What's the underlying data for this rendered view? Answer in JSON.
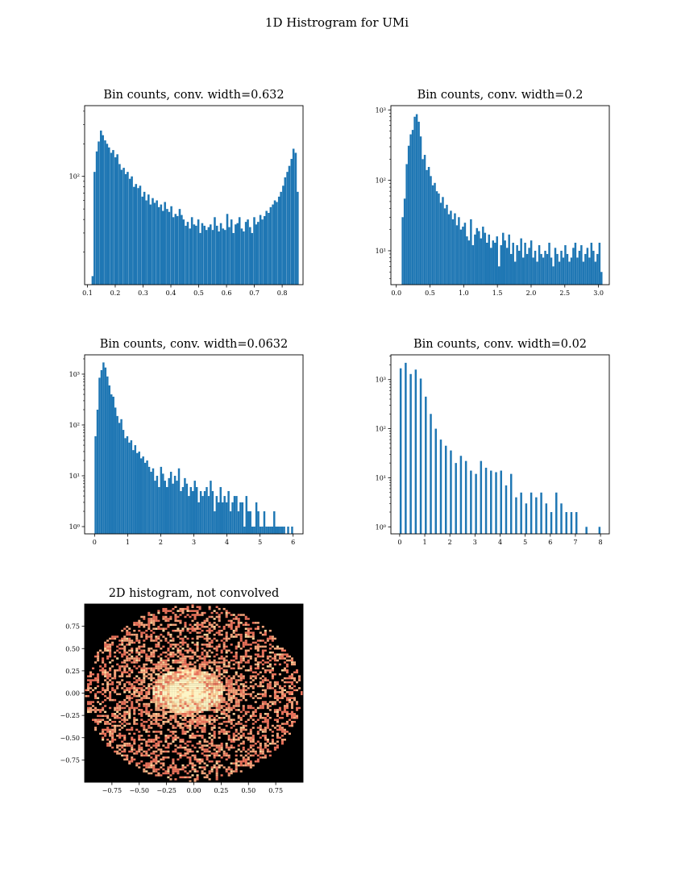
{
  "figure": {
    "suptitle": "1D Histrogram for UMi"
  },
  "colors": {
    "bar": "#1f77b4",
    "axis": "#000000"
  },
  "chart_data": [
    {
      "id": "h632",
      "type": "bar",
      "title": "Bin counts, conv. width=0.632",
      "yscale": "log",
      "xlim": [
        0.09,
        0.875
      ],
      "ylim": [
        10,
        450
      ],
      "x_ticks": [
        "0.1",
        "0.2",
        "0.3",
        "0.4",
        "0.5",
        "0.6",
        "0.7",
        "0.8"
      ],
      "x_tick_values": [
        0.1,
        0.2,
        0.3,
        0.4,
        0.5,
        0.6,
        0.7,
        0.8
      ],
      "y_ticks": [
        "10²"
      ],
      "y_tick_values": [
        100
      ],
      "y_minor_tick_values": [
        20,
        30,
        40,
        50,
        60,
        70,
        80,
        90,
        200,
        300,
        400
      ],
      "bin_width": 0.00745,
      "bin_left": [
        0.115,
        0.122,
        0.13,
        0.137,
        0.145,
        0.152,
        0.16,
        0.167,
        0.174,
        0.182,
        0.189,
        0.197,
        0.204,
        0.212,
        0.219,
        0.227,
        0.234,
        0.241,
        0.249,
        0.256,
        0.264,
        0.271,
        0.279,
        0.286,
        0.294,
        0.301,
        0.308,
        0.316,
        0.323,
        0.331,
        0.338,
        0.346,
        0.353,
        0.361,
        0.368,
        0.375,
        0.383,
        0.39,
        0.398,
        0.405,
        0.413,
        0.42,
        0.428,
        0.435,
        0.442,
        0.45,
        0.457,
        0.465,
        0.472,
        0.48,
        0.487,
        0.495,
        0.502,
        0.509,
        0.517,
        0.524,
        0.532,
        0.539,
        0.547,
        0.554,
        0.562,
        0.569,
        0.576,
        0.584,
        0.591,
        0.599,
        0.606,
        0.614,
        0.621,
        0.629,
        0.636,
        0.643,
        0.651,
        0.658,
        0.666,
        0.673,
        0.681,
        0.688,
        0.696,
        0.703,
        0.71,
        0.718,
        0.725,
        0.733,
        0.74,
        0.748,
        0.755,
        0.763,
        0.77,
        0.777,
        0.785,
        0.792,
        0.8,
        0.807,
        0.815,
        0.822,
        0.83,
        0.837,
        0.845,
        0.852
      ],
      "values": [
        12,
        110,
        170,
        210,
        265,
        240,
        215,
        200,
        185,
        165,
        175,
        150,
        160,
        130,
        115,
        120,
        105,
        110,
        95,
        100,
        80,
        85,
        78,
        82,
        65,
        72,
        60,
        68,
        55,
        63,
        57,
        60,
        52,
        55,
        48,
        58,
        50,
        47,
        53,
        42,
        45,
        43,
        50,
        44,
        40,
        35,
        38,
        33,
        42,
        36,
        35,
        40,
        30,
        37,
        35,
        32,
        34,
        36,
        32,
        42,
        35,
        31,
        37,
        33,
        32,
        45,
        34,
        40,
        30,
        36,
        37,
        42,
        33,
        31,
        38,
        40,
        34,
        30,
        42,
        36,
        38,
        44,
        40,
        43,
        48,
        46,
        52,
        55,
        60,
        58,
        65,
        72,
        82,
        98,
        110,
        125,
        145,
        180,
        165,
        72
      ]
    },
    {
      "id": "h2",
      "type": "bar",
      "title": "Bin counts, conv. width=0.2",
      "yscale": "log",
      "xlim": [
        -0.08,
        3.16
      ],
      "ylim": [
        3.3,
        1150
      ],
      "x_ticks": [
        "0.0",
        "0.5",
        "1.0",
        "1.5",
        "2.0",
        "2.5",
        "3.0"
      ],
      "x_tick_values": [
        0.0,
        0.5,
        1.0,
        1.5,
        2.0,
        2.5,
        3.0
      ],
      "y_ticks": [
        "10¹",
        "10²",
        "10³"
      ],
      "y_tick_values": [
        10,
        100,
        1000
      ],
      "y_minor_tick_values": [
        4,
        5,
        6,
        7,
        8,
        9,
        20,
        30,
        40,
        50,
        60,
        70,
        80,
        90,
        200,
        300,
        400,
        500,
        600,
        700,
        800,
        900
      ],
      "bin_width": 0.0298,
      "bin_left": [
        0.08,
        0.11,
        0.14,
        0.17,
        0.199,
        0.229,
        0.259,
        0.289,
        0.319,
        0.348,
        0.378,
        0.408,
        0.438,
        0.468,
        0.497,
        0.527,
        0.557,
        0.587,
        0.616,
        0.646,
        0.676,
        0.706,
        0.736,
        0.765,
        0.795,
        0.825,
        0.855,
        0.885,
        0.914,
        0.944,
        0.974,
        1.004,
        1.034,
        1.063,
        1.093,
        1.123,
        1.153,
        1.182,
        1.212,
        1.242,
        1.272,
        1.302,
        1.331,
        1.361,
        1.391,
        1.421,
        1.451,
        1.48,
        1.51,
        1.54,
        1.57,
        1.599,
        1.629,
        1.659,
        1.689,
        1.719,
        1.748,
        1.778,
        1.808,
        1.838,
        1.868,
        1.897,
        1.927,
        1.957,
        1.987,
        2.017,
        2.046,
        2.076,
        2.106,
        2.136,
        2.165,
        2.195,
        2.225,
        2.255,
        2.285,
        2.314,
        2.344,
        2.374,
        2.404,
        2.434,
        2.463,
        2.493,
        2.523,
        2.553,
        2.583,
        2.612,
        2.642,
        2.672,
        2.702,
        2.731,
        2.761,
        2.791,
        2.821,
        2.851,
        2.88,
        2.91,
        2.94,
        2.97,
        3.0,
        3.029
      ],
      "values": [
        30,
        55,
        170,
        310,
        450,
        520,
        800,
        870,
        680,
        420,
        200,
        230,
        140,
        155,
        115,
        85,
        92,
        70,
        65,
        48,
        58,
        40,
        45,
        33,
        37,
        28,
        34,
        23,
        30,
        20,
        22,
        25,
        16,
        14,
        28,
        12,
        17,
        21,
        19,
        15,
        22,
        18,
        13,
        17,
        11,
        14,
        13,
        16,
        6,
        12,
        18,
        14,
        11,
        17,
        9,
        13,
        7,
        12,
        10,
        15,
        8,
        13,
        9,
        11,
        14,
        8,
        10,
        7,
        12,
        9,
        8,
        10,
        9,
        13,
        8,
        6,
        11,
        9,
        7,
        10,
        8,
        12,
        9,
        7,
        8,
        11,
        13,
        8,
        10,
        12,
        7,
        9,
        11,
        8,
        13,
        10,
        7,
        9,
        13,
        5
      ]
    },
    {
      "id": "h0632",
      "type": "bar",
      "title": "Bin counts, conv. width=0.0632",
      "yscale": "log",
      "xlim": [
        -0.3,
        6.3
      ],
      "ylim": [
        0.72,
        2400
      ],
      "x_ticks": [
        "0",
        "1",
        "2",
        "3",
        "4",
        "5",
        "6"
      ],
      "x_tick_values": [
        0,
        1,
        2,
        3,
        4,
        5,
        6
      ],
      "y_ticks": [
        "10⁰",
        "10¹",
        "10²",
        "10³"
      ],
      "y_tick_values": [
        1,
        10,
        100,
        1000
      ],
      "y_minor_tick_values": [
        2,
        3,
        4,
        5,
        6,
        7,
        8,
        9,
        20,
        30,
        40,
        50,
        60,
        70,
        80,
        90,
        200,
        300,
        400,
        500,
        600,
        700,
        800,
        900,
        2000
      ],
      "bin_width": 0.06,
      "bin_left": [
        0.0,
        0.06,
        0.12,
        0.18,
        0.24,
        0.3,
        0.36,
        0.42,
        0.48,
        0.54,
        0.6,
        0.66,
        0.72,
        0.78,
        0.84,
        0.9,
        0.96,
        1.02,
        1.08,
        1.14,
        1.2,
        1.26,
        1.32,
        1.38,
        1.44,
        1.5,
        1.56,
        1.62,
        1.68,
        1.74,
        1.8,
        1.86,
        1.92,
        1.98,
        2.04,
        2.1,
        2.16,
        2.22,
        2.28,
        2.34,
        2.4,
        2.46,
        2.52,
        2.58,
        2.64,
        2.7,
        2.76,
        2.82,
        2.88,
        2.94,
        3.0,
        3.06,
        3.12,
        3.18,
        3.24,
        3.3,
        3.36,
        3.42,
        3.48,
        3.54,
        3.6,
        3.66,
        3.72,
        3.78,
        3.84,
        3.9,
        3.96,
        4.02,
        4.08,
        4.14,
        4.2,
        4.26,
        4.32,
        4.38,
        4.44,
        4.5,
        4.56,
        4.62,
        4.68,
        4.74,
        4.8,
        4.86,
        4.92,
        4.98,
        5.04,
        5.1,
        5.16,
        5.22,
        5.28,
        5.34,
        5.4,
        5.46,
        5.52,
        5.58,
        5.64,
        5.7,
        5.76,
        5.82,
        5.88,
        5.94
      ],
      "values": [
        60,
        200,
        850,
        1200,
        1700,
        1350,
        900,
        600,
        400,
        360,
        220,
        150,
        110,
        130,
        80,
        55,
        60,
        45,
        50,
        32,
        40,
        28,
        30,
        22,
        24,
        18,
        20,
        15,
        12,
        14,
        8,
        10,
        6,
        15,
        11,
        8,
        6,
        9,
        12,
        7,
        10,
        8,
        14,
        5,
        6,
        9,
        7,
        4,
        6,
        5,
        8,
        6,
        3,
        5,
        4,
        5,
        6,
        4,
        8,
        5,
        2,
        4,
        3,
        6,
        3,
        4,
        3,
        5,
        2,
        3,
        4,
        4,
        2,
        3,
        3,
        1,
        4,
        2,
        2,
        1,
        1,
        3,
        2,
        1,
        1,
        2,
        1,
        1,
        1,
        1,
        2,
        1,
        1,
        1,
        1,
        1,
        0,
        1,
        0,
        1
      ]
    },
    {
      "id": "h02",
      "type": "bar",
      "title": "Bin counts, conv. width=0.02",
      "yscale": "log",
      "xlim": [
        -0.35,
        8.35
      ],
      "ylim": [
        0.72,
        3200
      ],
      "x_ticks": [
        "0",
        "1",
        "2",
        "3",
        "4",
        "5",
        "6",
        "7",
        "8"
      ],
      "x_tick_values": [
        0,
        1,
        2,
        3,
        4,
        5,
        6,
        7,
        8
      ],
      "y_ticks": [
        "10⁰",
        "10¹",
        "10²",
        "10³"
      ],
      "y_tick_values": [
        1,
        10,
        100,
        1000
      ],
      "y_minor_tick_values": [
        2,
        3,
        4,
        5,
        6,
        7,
        8,
        9,
        20,
        30,
        40,
        50,
        60,
        70,
        80,
        90,
        200,
        300,
        400,
        500,
        600,
        700,
        800,
        900,
        2000,
        3000
      ],
      "bin_width": 0.08,
      "bin_left": [
        0.0,
        0.2,
        0.4,
        0.6,
        0.8,
        1.0,
        1.2,
        1.4,
        1.6,
        1.8,
        2.0,
        2.2,
        2.4,
        2.6,
        2.8,
        3.0,
        3.2,
        3.4,
        3.6,
        3.8,
        4.0,
        4.2,
        4.4,
        4.6,
        4.8,
        5.0,
        5.2,
        5.4,
        5.6,
        5.8,
        6.0,
        6.2,
        6.4,
        6.6,
        6.8,
        7.0,
        7.4,
        7.92
      ],
      "values": [
        1700,
        2200,
        1300,
        1600,
        1050,
        450,
        200,
        100,
        60,
        45,
        36,
        20,
        28,
        22,
        14,
        12,
        22,
        16,
        14,
        13,
        14,
        7,
        12,
        4,
        5,
        3,
        5,
        4,
        5,
        3,
        2,
        5,
        3,
        2,
        2,
        2,
        1,
        1
      ]
    },
    {
      "id": "hist2d",
      "type": "heatmap",
      "title": "2D histogram, not convolved",
      "xlim": [
        -1.0,
        1.0
      ],
      "ylim": [
        -1.0,
        1.0
      ],
      "x_ticks": [
        "−0.75",
        "−0.50",
        "−0.25",
        "0.00",
        "0.25",
        "0.50",
        "0.75"
      ],
      "x_tick_values": [
        -0.75,
        -0.5,
        -0.25,
        0.0,
        0.25,
        0.5,
        0.75
      ],
      "y_ticks": [
        "−0.75",
        "−0.50",
        "−0.25",
        "0.00",
        "0.25",
        "0.50",
        "0.75"
      ],
      "y_tick_values": [
        -0.75,
        -0.5,
        -0.25,
        0.0,
        0.25,
        0.5,
        0.75
      ],
      "colormap": [
        "#000000",
        "#e8715a",
        "#f3a37a",
        "#fcd39b",
        "#fdf5c6"
      ],
      "cells_per_axis": 90,
      "footprint_radius": 0.99,
      "core_center": [
        -0.05,
        0.02
      ],
      "core_radius": 0.25
    }
  ]
}
